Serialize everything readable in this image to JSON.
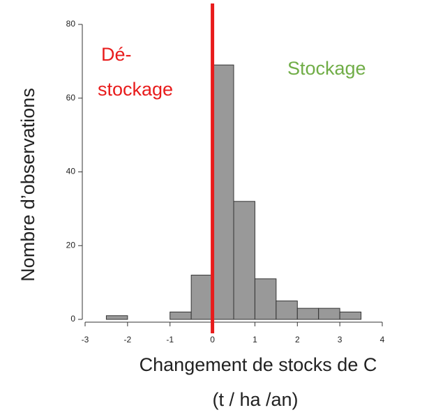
{
  "chart_data": {
    "type": "histogram",
    "bins": [
      -3,
      -2.5,
      -2,
      -1.5,
      -1,
      -0.5,
      0,
      0.5,
      1,
      1.5,
      2,
      2.5,
      3,
      3.5
    ],
    "values": [
      0,
      1,
      0,
      0,
      2,
      12,
      69,
      32,
      11,
      5,
      3,
      3,
      2
    ],
    "color": "#999999",
    "xlim": [
      -3,
      4
    ],
    "xticks": [
      -3,
      -2,
      -1,
      0,
      1,
      2,
      3,
      4
    ],
    "ylim": [
      0,
      80
    ],
    "yticks": [
      0,
      20,
      40,
      60,
      80
    ],
    "ylabel": "Nombre d’observations",
    "xlabel": [
      "Changement de stocks de C",
      "(t / ha /an)"
    ],
    "reference_line": {
      "x": 0,
      "color": "#e81c1c"
    },
    "annotations": [
      {
        "lines": [
          "Dé-",
          "stockage"
        ],
        "color": "#e81c1c"
      },
      {
        "lines": [
          "Stockage"
        ],
        "color": "#70ad47"
      }
    ]
  }
}
